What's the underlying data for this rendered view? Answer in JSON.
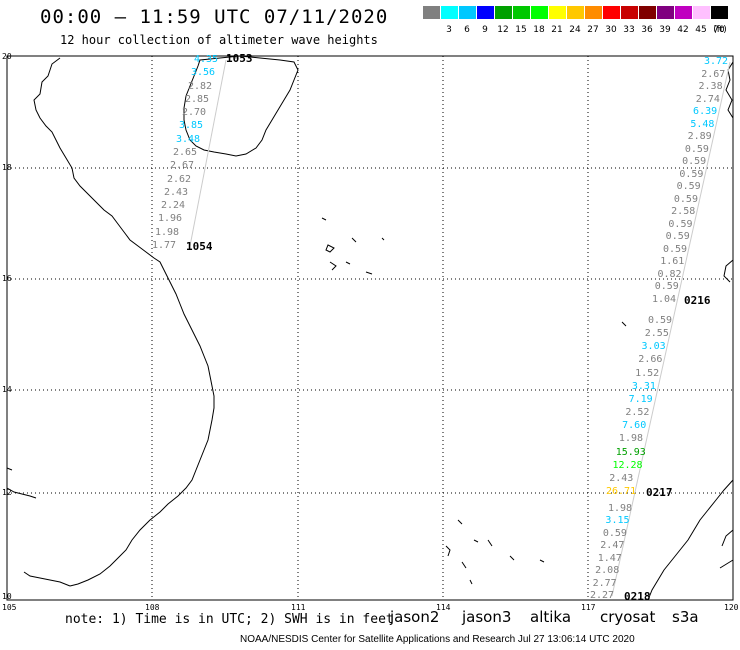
{
  "header": {
    "title": "00:00 – 11:59 UTC 07/11/2020",
    "subtitle": "12 hour collection of altimeter wave heights"
  },
  "legend": {
    "unit": "(ft)",
    "swatches": [
      {
        "label": "",
        "color": "#808080"
      },
      {
        "label": "3",
        "color": "#00ffff"
      },
      {
        "label": "6",
        "color": "#00c8ff"
      },
      {
        "label": "9",
        "color": "#0000ff"
      },
      {
        "label": "12",
        "color": "#00a000"
      },
      {
        "label": "15",
        "color": "#00c800"
      },
      {
        "label": "18",
        "color": "#00ff00"
      },
      {
        "label": "21",
        "color": "#ffff00"
      },
      {
        "label": "24",
        "color": "#ffc800"
      },
      {
        "label": "27",
        "color": "#ff8c00"
      },
      {
        "label": "30",
        "color": "#ff0000"
      },
      {
        "label": "33",
        "color": "#c80000"
      },
      {
        "label": "36",
        "color": "#800000"
      },
      {
        "label": "39",
        "color": "#800080"
      },
      {
        "label": "42",
        "color": "#c000c0"
      },
      {
        "label": "45",
        "color": "#ffc0ff"
      },
      {
        "label": "70",
        "color": "#000000"
      }
    ]
  },
  "axes": {
    "lon_labels": [
      "105",
      "108",
      "111",
      "114",
      "117",
      "120"
    ],
    "lat_labels": [
      "20",
      "18",
      "16",
      "14",
      "12",
      "10"
    ]
  },
  "passes": [
    {
      "id": "1053",
      "color": "#ff8c00"
    },
    {
      "id": "1054",
      "color": "#ff8c00"
    },
    {
      "id": "0216",
      "color": "#800000"
    },
    {
      "id": "0217",
      "color": "#800000"
    },
    {
      "id": "0218",
      "color": "#800000"
    }
  ],
  "track_left": [
    {
      "v": "4.35",
      "c": "#00c8ff"
    },
    {
      "v": "3.56",
      "c": "#00c8ff"
    },
    {
      "v": "2.82",
      "c": "#808080"
    },
    {
      "v": "2.85",
      "c": "#808080"
    },
    {
      "v": "2.70",
      "c": "#808080"
    },
    {
      "v": "3.85",
      "c": "#00c8ff"
    },
    {
      "v": "3.48",
      "c": "#00c8ff"
    },
    {
      "v": "2.65",
      "c": "#808080"
    },
    {
      "v": "2.67",
      "c": "#808080"
    },
    {
      "v": "2.62",
      "c": "#808080"
    },
    {
      "v": "2.43",
      "c": "#808080"
    },
    {
      "v": "2.24",
      "c": "#808080"
    },
    {
      "v": "1.96",
      "c": "#808080"
    },
    {
      "v": "1.98",
      "c": "#808080"
    },
    {
      "v": "1.77",
      "c": "#808080"
    }
  ],
  "track_right_top": [
    {
      "v": "3.72",
      "c": "#00c8ff"
    },
    {
      "v": "2.67",
      "c": "#808080"
    },
    {
      "v": "2.38",
      "c": "#808080"
    },
    {
      "v": "2.74",
      "c": "#808080"
    },
    {
      "v": "6.39",
      "c": "#00c8ff"
    },
    {
      "v": "5.48",
      "c": "#00c8ff"
    },
    {
      "v": "2.89",
      "c": "#808080"
    },
    {
      "v": "0.59",
      "c": "#808080"
    },
    {
      "v": "0.59",
      "c": "#808080"
    },
    {
      "v": "0.59",
      "c": "#808080"
    },
    {
      "v": "0.59",
      "c": "#808080"
    },
    {
      "v": "0.59",
      "c": "#808080"
    },
    {
      "v": "2.58",
      "c": "#808080"
    },
    {
      "v": "0.59",
      "c": "#808080"
    },
    {
      "v": "0.59",
      "c": "#808080"
    },
    {
      "v": "0.59",
      "c": "#808080"
    },
    {
      "v": "1.61",
      "c": "#808080"
    },
    {
      "v": "0.82",
      "c": "#808080"
    },
    {
      "v": "0.59",
      "c": "#808080"
    },
    {
      "v": "1.04",
      "c": "#808080"
    }
  ],
  "track_right_mid": [
    {
      "v": "0.59",
      "c": "#808080"
    },
    {
      "v": "2.55",
      "c": "#808080"
    },
    {
      "v": "3.03",
      "c": "#00c8ff"
    },
    {
      "v": "2.66",
      "c": "#808080"
    },
    {
      "v": "1.52",
      "c": "#808080"
    },
    {
      "v": "3.31",
      "c": "#00c8ff"
    },
    {
      "v": "7.19",
      "c": "#00c8ff"
    },
    {
      "v": "2.52",
      "c": "#808080"
    },
    {
      "v": "7.60",
      "c": "#00c8ff"
    },
    {
      "v": "1.98",
      "c": "#808080"
    },
    {
      "v": "15.93",
      "c": "#00a000"
    },
    {
      "v": "12.28",
      "c": "#00ff00"
    },
    {
      "v": "2.43",
      "c": "#808080"
    },
    {
      "v": "26.71",
      "c": "#ffc800"
    }
  ],
  "track_right_low": [
    {
      "v": "1.98",
      "c": "#808080"
    },
    {
      "v": "3.15",
      "c": "#00c8ff"
    },
    {
      "v": "0.59",
      "c": "#808080"
    },
    {
      "v": "2.47",
      "c": "#808080"
    },
    {
      "v": "1.47",
      "c": "#808080"
    },
    {
      "v": "2.08",
      "c": "#808080"
    },
    {
      "v": "2.77",
      "c": "#808080"
    },
    {
      "v": "2.27",
      "c": "#808080"
    }
  ],
  "satellites": [
    {
      "name": "jason2",
      "color": "#0000ff"
    },
    {
      "name": "jason3",
      "color": "#00a000"
    },
    {
      "name": "altika",
      "color": "#ff8c00"
    },
    {
      "name": "cryosat",
      "color": "#c80000"
    },
    {
      "name": "s3a",
      "color": "#c80000"
    }
  ],
  "footer": {
    "note": "note: 1) Time is in UTC; 2) SWH is in feet",
    "credit": "NOAA/NESDIS Center for Satellite Applications and Research    Jul 27 13:06:14 UTC 2020"
  }
}
